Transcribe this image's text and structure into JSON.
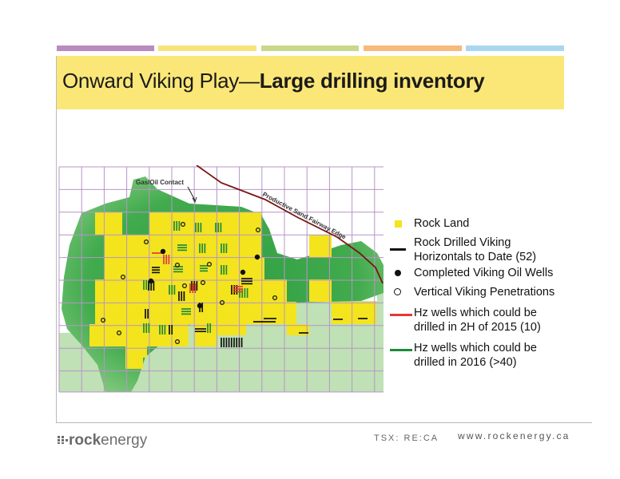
{
  "accent_bars": [
    "#b98bbf",
    "#f7e37a",
    "#c8d88a",
    "#f7b97d",
    "#a9d7ef"
  ],
  "title": {
    "normal": "Onward Viking Play—",
    "bold": "Large drilling inventory"
  },
  "map": {
    "label_gas_oil": "Gas/Oil Contact",
    "label_fairway": "Productive Sand Fairway Edge",
    "colors": {
      "rock_land": "#f2e21c",
      "fairway": "#3aa64a",
      "fairway_light": "#b9deaf",
      "grid": "#b38bc3",
      "edge_line": "#7a1412"
    }
  },
  "legend": [
    {
      "symbol": "yellow-square",
      "lines": [
        "Rock Land"
      ]
    },
    {
      "symbol": "black-line",
      "lines": [
        "Rock Drilled Viking",
        "Horizontals to Date (52)"
      ]
    },
    {
      "symbol": "black-dot",
      "lines": [
        "Completed Viking Oil Wells"
      ]
    },
    {
      "symbol": "open-circle",
      "lines": [
        "Vertical Viking Penetrations"
      ]
    },
    {
      "symbol": "red-line",
      "lines": [
        "Hz wells which could be",
        "drilled in 2H of 2015 (10)"
      ]
    },
    {
      "symbol": "green-line",
      "lines": [
        "Hz wells which could be",
        "drilled in 2016 (>40)"
      ]
    }
  ],
  "footer": {
    "logo_bold": "rock",
    "logo_normal": "energy",
    "ticker": "TSX: RE:CA",
    "website": "www.rockenergy.ca"
  }
}
